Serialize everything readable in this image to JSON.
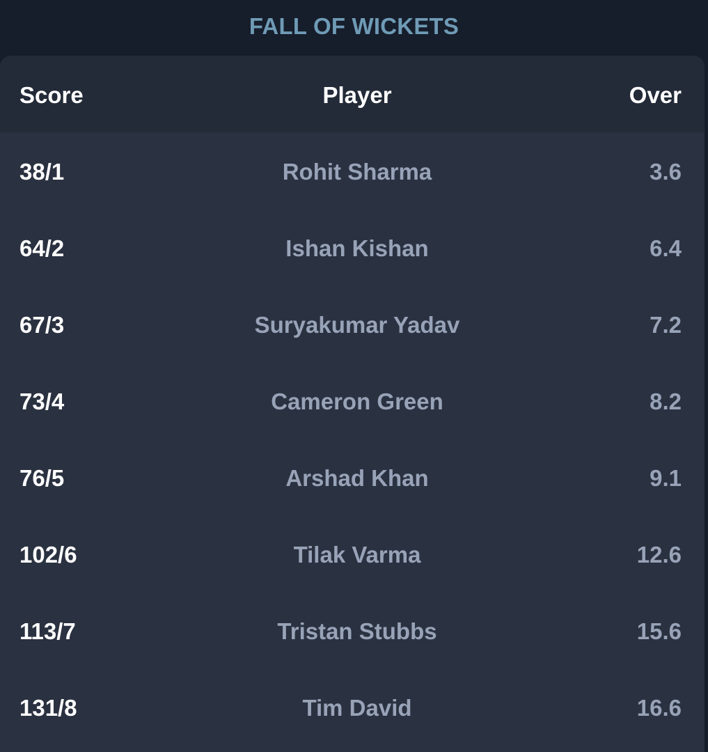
{
  "section": {
    "title": "FALL OF WICKETS"
  },
  "table": {
    "headers": {
      "score": "Score",
      "player": "Player",
      "over": "Over"
    },
    "rows": [
      {
        "score": "38/1",
        "player": "Rohit Sharma",
        "over": "3.6"
      },
      {
        "score": "64/2",
        "player": "Ishan Kishan",
        "over": "6.4"
      },
      {
        "score": "67/3",
        "player": "Suryakumar Yadav",
        "over": "7.2"
      },
      {
        "score": "73/4",
        "player": "Cameron Green",
        "over": "8.2"
      },
      {
        "score": "76/5",
        "player": "Arshad Khan",
        "over": "9.1"
      },
      {
        "score": "102/6",
        "player": "Tilak Varma",
        "over": "12.6"
      },
      {
        "score": "113/7",
        "player": "Tristan Stubbs",
        "over": "15.6"
      },
      {
        "score": "131/8",
        "player": "Tim David",
        "over": "16.6"
      }
    ]
  },
  "colors": {
    "page_background": "#161d2b",
    "card_background": "#2a3140",
    "header_background": "#232a38",
    "title_accent": "#6f9bb6",
    "primary_text": "#ffffff",
    "secondary_text": "#98a3b8"
  }
}
